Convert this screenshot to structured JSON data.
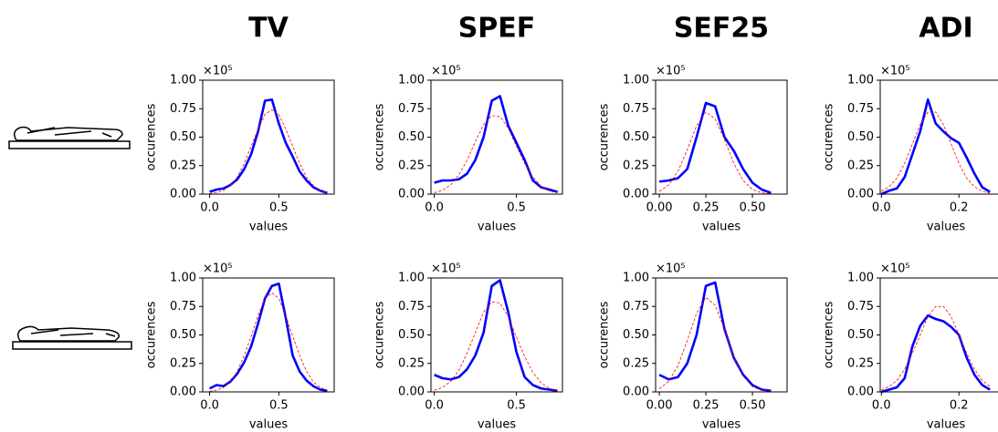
{
  "chart_data": [
    {
      "type": "line",
      "title": "TV",
      "ylabel": "occurences",
      "xlabel": "values",
      "y_offset_label": "×10⁵",
      "x": [
        0,
        0.05,
        0.1,
        0.15,
        0.2,
        0.25,
        0.3,
        0.35,
        0.4,
        0.45,
        0.5,
        0.55,
        0.6,
        0.65,
        0.7,
        0.75,
        0.8,
        0.85
      ],
      "series": [
        {
          "color": "#0000ff",
          "style": "solid",
          "values": [
            0.02,
            0.04,
            0.05,
            0.08,
            0.13,
            0.22,
            0.35,
            0.55,
            0.82,
            0.83,
            0.62,
            0.45,
            0.33,
            0.2,
            0.12,
            0.06,
            0.03,
            0.01
          ]
        },
        {
          "color": "#ff0000",
          "style": "dashed",
          "values": [
            0.004,
            0.013,
            0.033,
            0.074,
            0.15,
            0.27,
            0.42,
            0.57,
            0.7,
            0.74,
            0.7,
            0.57,
            0.42,
            0.27,
            0.15,
            0.074,
            0.033,
            0.013
          ]
        }
      ],
      "xlim": [
        -0.05,
        0.9
      ],
      "xticks": [
        {
          "value": 0,
          "label": "0.0"
        },
        0.5
      ],
      "ylim": [
        0,
        1
      ],
      "yticks": [
        {
          "value": 0,
          "label": "0.00"
        },
        0.25,
        {
          "value": 0.5,
          "label": "0.50"
        },
        0.75,
        {
          "value": 1,
          "label": "1.00"
        }
      ]
    },
    {
      "type": "line",
      "title": "SPEF",
      "ylabel": "occurences",
      "xlabel": "values",
      "y_offset_label": "×10⁵",
      "x": [
        0,
        0.05,
        0.1,
        0.15,
        0.2,
        0.25,
        0.3,
        0.35,
        0.4,
        0.45,
        0.5,
        0.55,
        0.6,
        0.65,
        0.7,
        0.75
      ],
      "series": [
        {
          "color": "#0000ff",
          "style": "solid",
          "values": [
            0.1,
            0.12,
            0.12,
            0.13,
            0.18,
            0.3,
            0.5,
            0.82,
            0.86,
            0.6,
            0.45,
            0.3,
            0.12,
            0.06,
            0.04,
            0.02
          ]
        },
        {
          "color": "#ff0000",
          "style": "dashed",
          "values": [
            0.012,
            0.034,
            0.081,
            0.17,
            0.3,
            0.46,
            0.61,
            0.69,
            0.68,
            0.58,
            0.42,
            0.27,
            0.15,
            0.069,
            0.028,
            0.01
          ]
        }
      ],
      "xlim": [
        -0.02,
        0.78
      ],
      "xticks": [
        {
          "value": 0,
          "label": "0.0"
        },
        0.5
      ],
      "ylim": [
        0,
        1
      ],
      "yticks": [
        {
          "value": 0,
          "label": "0.00"
        },
        0.25,
        {
          "value": 0.5,
          "label": "0.50"
        },
        0.75,
        {
          "value": 1,
          "label": "1.00"
        }
      ]
    },
    {
      "type": "line",
      "title": "SEF25",
      "ylabel": "occurences",
      "xlabel": "values",
      "y_offset_label": "×10⁵",
      "x": [
        0,
        0.05,
        0.1,
        0.15,
        0.2,
        0.25,
        0.3,
        0.35,
        0.4,
        0.45,
        0.5,
        0.55,
        0.6
      ],
      "series": [
        {
          "color": "#0000ff",
          "style": "solid",
          "values": [
            0.11,
            0.12,
            0.14,
            0.22,
            0.5,
            0.8,
            0.77,
            0.5,
            0.38,
            0.22,
            0.1,
            0.04,
            0.01
          ]
        },
        {
          "color": "#ff0000",
          "style": "dashed",
          "values": [
            0.024,
            0.08,
            0.2,
            0.39,
            0.6,
            0.72,
            0.66,
            0.48,
            0.27,
            0.12,
            0.04,
            0.011,
            0.002
          ]
        }
      ],
      "xlim": [
        -0.02,
        0.686
      ],
      "xticks": [
        {
          "value": 0,
          "label": "0.00"
        },
        0.25,
        {
          "value": 0.5,
          "label": "0.50"
        }
      ],
      "ylim": [
        0,
        1
      ],
      "yticks": [
        {
          "value": 0,
          "label": "0.00"
        },
        0.25,
        {
          "value": 0.5,
          "label": "0.50"
        },
        0.75,
        {
          "value": 1,
          "label": "1.00"
        }
      ]
    },
    {
      "type": "line",
      "title": "ADI",
      "ylabel": "occurences",
      "xlabel": "values",
      "y_offset_label": "×10⁵",
      "x": [
        0,
        0.02,
        0.04,
        0.06,
        0.08,
        0.1,
        0.12,
        0.14,
        0.16,
        0.18,
        0.2,
        0.22,
        0.24,
        0.26,
        0.28
      ],
      "series": [
        {
          "color": "#0000ff",
          "style": "solid",
          "values": [
            0,
            0.03,
            0.05,
            0.15,
            0.35,
            0.55,
            0.83,
            0.62,
            0.55,
            0.49,
            0.45,
            0.32,
            0.18,
            0.06,
            0.02
          ]
        },
        {
          "color": "#ff0000",
          "style": "dashed",
          "values": [
            0.025,
            0.065,
            0.14,
            0.27,
            0.44,
            0.61,
            0.72,
            0.72,
            0.61,
            0.44,
            0.27,
            0.14,
            0.065,
            0.025,
            0.008
          ]
        }
      ],
      "xlim": [
        -0.003,
        0.336
      ],
      "xticks": [
        {
          "value": 0,
          "label": "0.0"
        },
        0.2
      ],
      "ylim": [
        0,
        1
      ],
      "yticks": [
        {
          "value": 0,
          "label": "0.00"
        },
        0.25,
        {
          "value": 0.5,
          "label": "0.50"
        },
        0.75,
        {
          "value": 1,
          "label": "1.00"
        }
      ]
    },
    {
      "type": "line",
      "ylabel": "occurences",
      "xlabel": "values",
      "y_offset_label": "×10⁵",
      "x": [
        0,
        0.05,
        0.1,
        0.15,
        0.2,
        0.25,
        0.3,
        0.35,
        0.4,
        0.45,
        0.5,
        0.55,
        0.6,
        0.65,
        0.7,
        0.75,
        0.8,
        0.85
      ],
      "series": [
        {
          "color": "#0000ff",
          "style": "solid",
          "values": [
            0.03,
            0.06,
            0.05,
            0.09,
            0.16,
            0.26,
            0.4,
            0.6,
            0.82,
            0.93,
            0.95,
            0.65,
            0.32,
            0.18,
            0.1,
            0.05,
            0.02,
            0.01
          ]
        },
        {
          "color": "#ff0000",
          "style": "dashed",
          "values": [
            0.005,
            0.015,
            0.039,
            0.087,
            0.18,
            0.32,
            0.49,
            0.67,
            0.82,
            0.87,
            0.82,
            0.67,
            0.49,
            0.32,
            0.18,
            0.087,
            0.039,
            0.015
          ]
        }
      ],
      "xlim": [
        -0.05,
        0.9
      ],
      "xticks": [
        {
          "value": 0,
          "label": "0.0"
        },
        0.5
      ],
      "ylim": [
        0,
        1
      ],
      "yticks": [
        {
          "value": 0,
          "label": "0.00"
        },
        0.25,
        {
          "value": 0.5,
          "label": "0.50"
        },
        0.75,
        {
          "value": 1,
          "label": "1.00"
        }
      ]
    },
    {
      "type": "line",
      "ylabel": "occurences",
      "xlabel": "values",
      "y_offset_label": "×10⁵",
      "x": [
        0,
        0.05,
        0.1,
        0.15,
        0.2,
        0.25,
        0.3,
        0.35,
        0.4,
        0.45,
        0.5,
        0.55,
        0.6,
        0.65,
        0.7,
        0.75
      ],
      "series": [
        {
          "color": "#0000ff",
          "style": "solid",
          "values": [
            0.15,
            0.12,
            0.11,
            0.13,
            0.2,
            0.32,
            0.52,
            0.93,
            0.98,
            0.7,
            0.35,
            0.13,
            0.06,
            0.03,
            0.02,
            0.01
          ]
        },
        {
          "color": "#ff0000",
          "style": "dashed",
          "values": [
            0.014,
            0.039,
            0.092,
            0.19,
            0.34,
            0.52,
            0.7,
            0.79,
            0.78,
            0.66,
            0.48,
            0.31,
            0.17,
            0.079,
            0.032,
            0.011
          ]
        }
      ],
      "xlim": [
        -0.02,
        0.78
      ],
      "xticks": [
        {
          "value": 0,
          "label": "0.0"
        },
        0.5
      ],
      "ylim": [
        0,
        1
      ],
      "yticks": [
        {
          "value": 0,
          "label": "0.00"
        },
        0.25,
        {
          "value": 0.5,
          "label": "0.50"
        },
        0.75,
        {
          "value": 1,
          "label": "1.00"
        }
      ]
    },
    {
      "type": "line",
      "ylabel": "occurences",
      "xlabel": "values",
      "y_offset_label": "×10⁵",
      "x": [
        0,
        0.05,
        0.1,
        0.15,
        0.2,
        0.25,
        0.3,
        0.35,
        0.4,
        0.45,
        0.5,
        0.55,
        0.6
      ],
      "series": [
        {
          "color": "#0000ff",
          "style": "solid",
          "values": [
            0.15,
            0.11,
            0.13,
            0.25,
            0.5,
            0.93,
            0.96,
            0.55,
            0.3,
            0.15,
            0.06,
            0.02,
            0.01
          ]
        },
        {
          "color": "#ff0000",
          "style": "dashed",
          "values": [
            0.028,
            0.092,
            0.23,
            0.45,
            0.69,
            0.83,
            0.76,
            0.55,
            0.31,
            0.14,
            0.046,
            0.013,
            0.002
          ]
        }
      ],
      "xlim": [
        -0.02,
        0.686
      ],
      "xticks": [
        {
          "value": 0,
          "label": "0.00"
        },
        0.25,
        {
          "value": 0.5,
          "label": "0.50"
        }
      ],
      "ylim": [
        0,
        1
      ],
      "yticks": [
        {
          "value": 0,
          "label": "0.00"
        },
        0.25,
        {
          "value": 0.5,
          "label": "0.50"
        },
        0.75,
        {
          "value": 1,
          "label": "1.00"
        }
      ]
    },
    {
      "type": "line",
      "ylabel": "occurences",
      "xlabel": "values",
      "y_offset_label": "×10⁵",
      "x": [
        0,
        0.02,
        0.04,
        0.06,
        0.08,
        0.1,
        0.12,
        0.14,
        0.16,
        0.18,
        0.2,
        0.22,
        0.24,
        0.26,
        0.28
      ],
      "series": [
        {
          "color": "#0000ff",
          "style": "solid",
          "values": [
            0,
            0.02,
            0.04,
            0.12,
            0.4,
            0.58,
            0.67,
            0.64,
            0.62,
            0.57,
            0.5,
            0.3,
            0.15,
            0.06,
            0.02
          ]
        },
        {
          "color": "#ff0000",
          "style": "dashed",
          "values": [
            0.018,
            0.047,
            0.1,
            0.2,
            0.34,
            0.5,
            0.66,
            0.75,
            0.75,
            0.66,
            0.5,
            0.34,
            0.2,
            0.1,
            0.047
          ]
        }
      ],
      "xlim": [
        -0.003,
        0.336
      ],
      "xticks": [
        {
          "value": 0,
          "label": "0.0"
        },
        0.2
      ],
      "ylim": [
        0,
        1
      ],
      "yticks": [
        {
          "value": 0,
          "label": "0.00"
        },
        0.25,
        {
          "value": 0.5,
          "label": "0.50"
        },
        0.75,
        {
          "value": 1,
          "label": "1.00"
        }
      ]
    }
  ]
}
